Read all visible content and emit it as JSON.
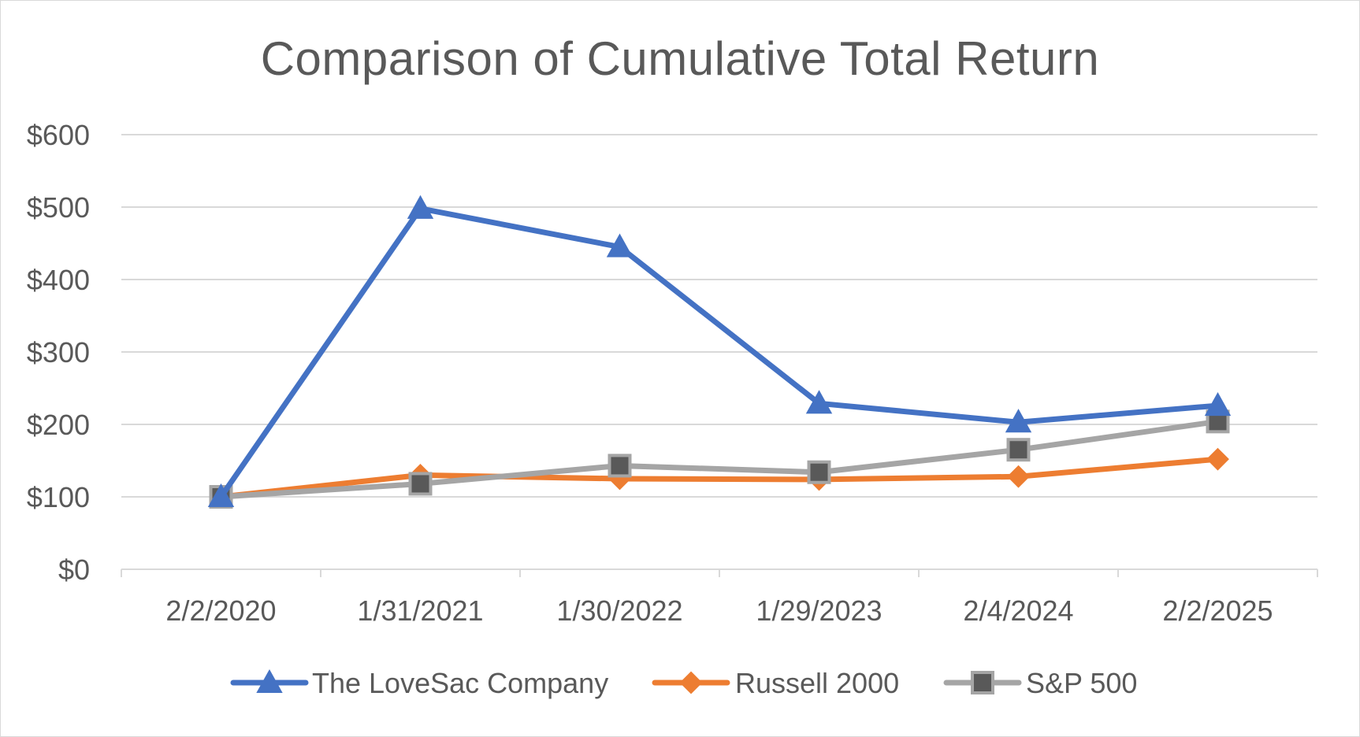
{
  "chart_data": {
    "type": "line",
    "title": "Comparison of Cumulative Total Return",
    "xlabel": "",
    "ylabel": "",
    "categories": [
      "2/2/2020",
      "1/31/2021",
      "1/30/2022",
      "1/29/2023",
      "2/4/2024",
      "2/2/2025"
    ],
    "ylim": [
      0,
      600
    ],
    "y_ticks": [
      0,
      100,
      200,
      300,
      400,
      500,
      600
    ],
    "y_tick_labels": [
      "$0",
      "$100",
      "$200",
      "$300",
      "$400",
      "$500",
      "$600"
    ],
    "grid": true,
    "legend": "bottom",
    "series": [
      {
        "name": "The LoveSac Company",
        "values": [
          100,
          498,
          445,
          229,
          203,
          226
        ],
        "color": "#4472c4",
        "marker": "triangle"
      },
      {
        "name": "Russell 2000",
        "values": [
          100,
          130,
          125,
          124,
          128,
          152
        ],
        "color": "#ed7d31",
        "marker": "diamond"
      },
      {
        "name": "S&P 500",
        "values": [
          100,
          118,
          143,
          134,
          165,
          204
        ],
        "color": "#a5a5a5",
        "marker": "square",
        "marker_fill": "#595959"
      }
    ]
  }
}
